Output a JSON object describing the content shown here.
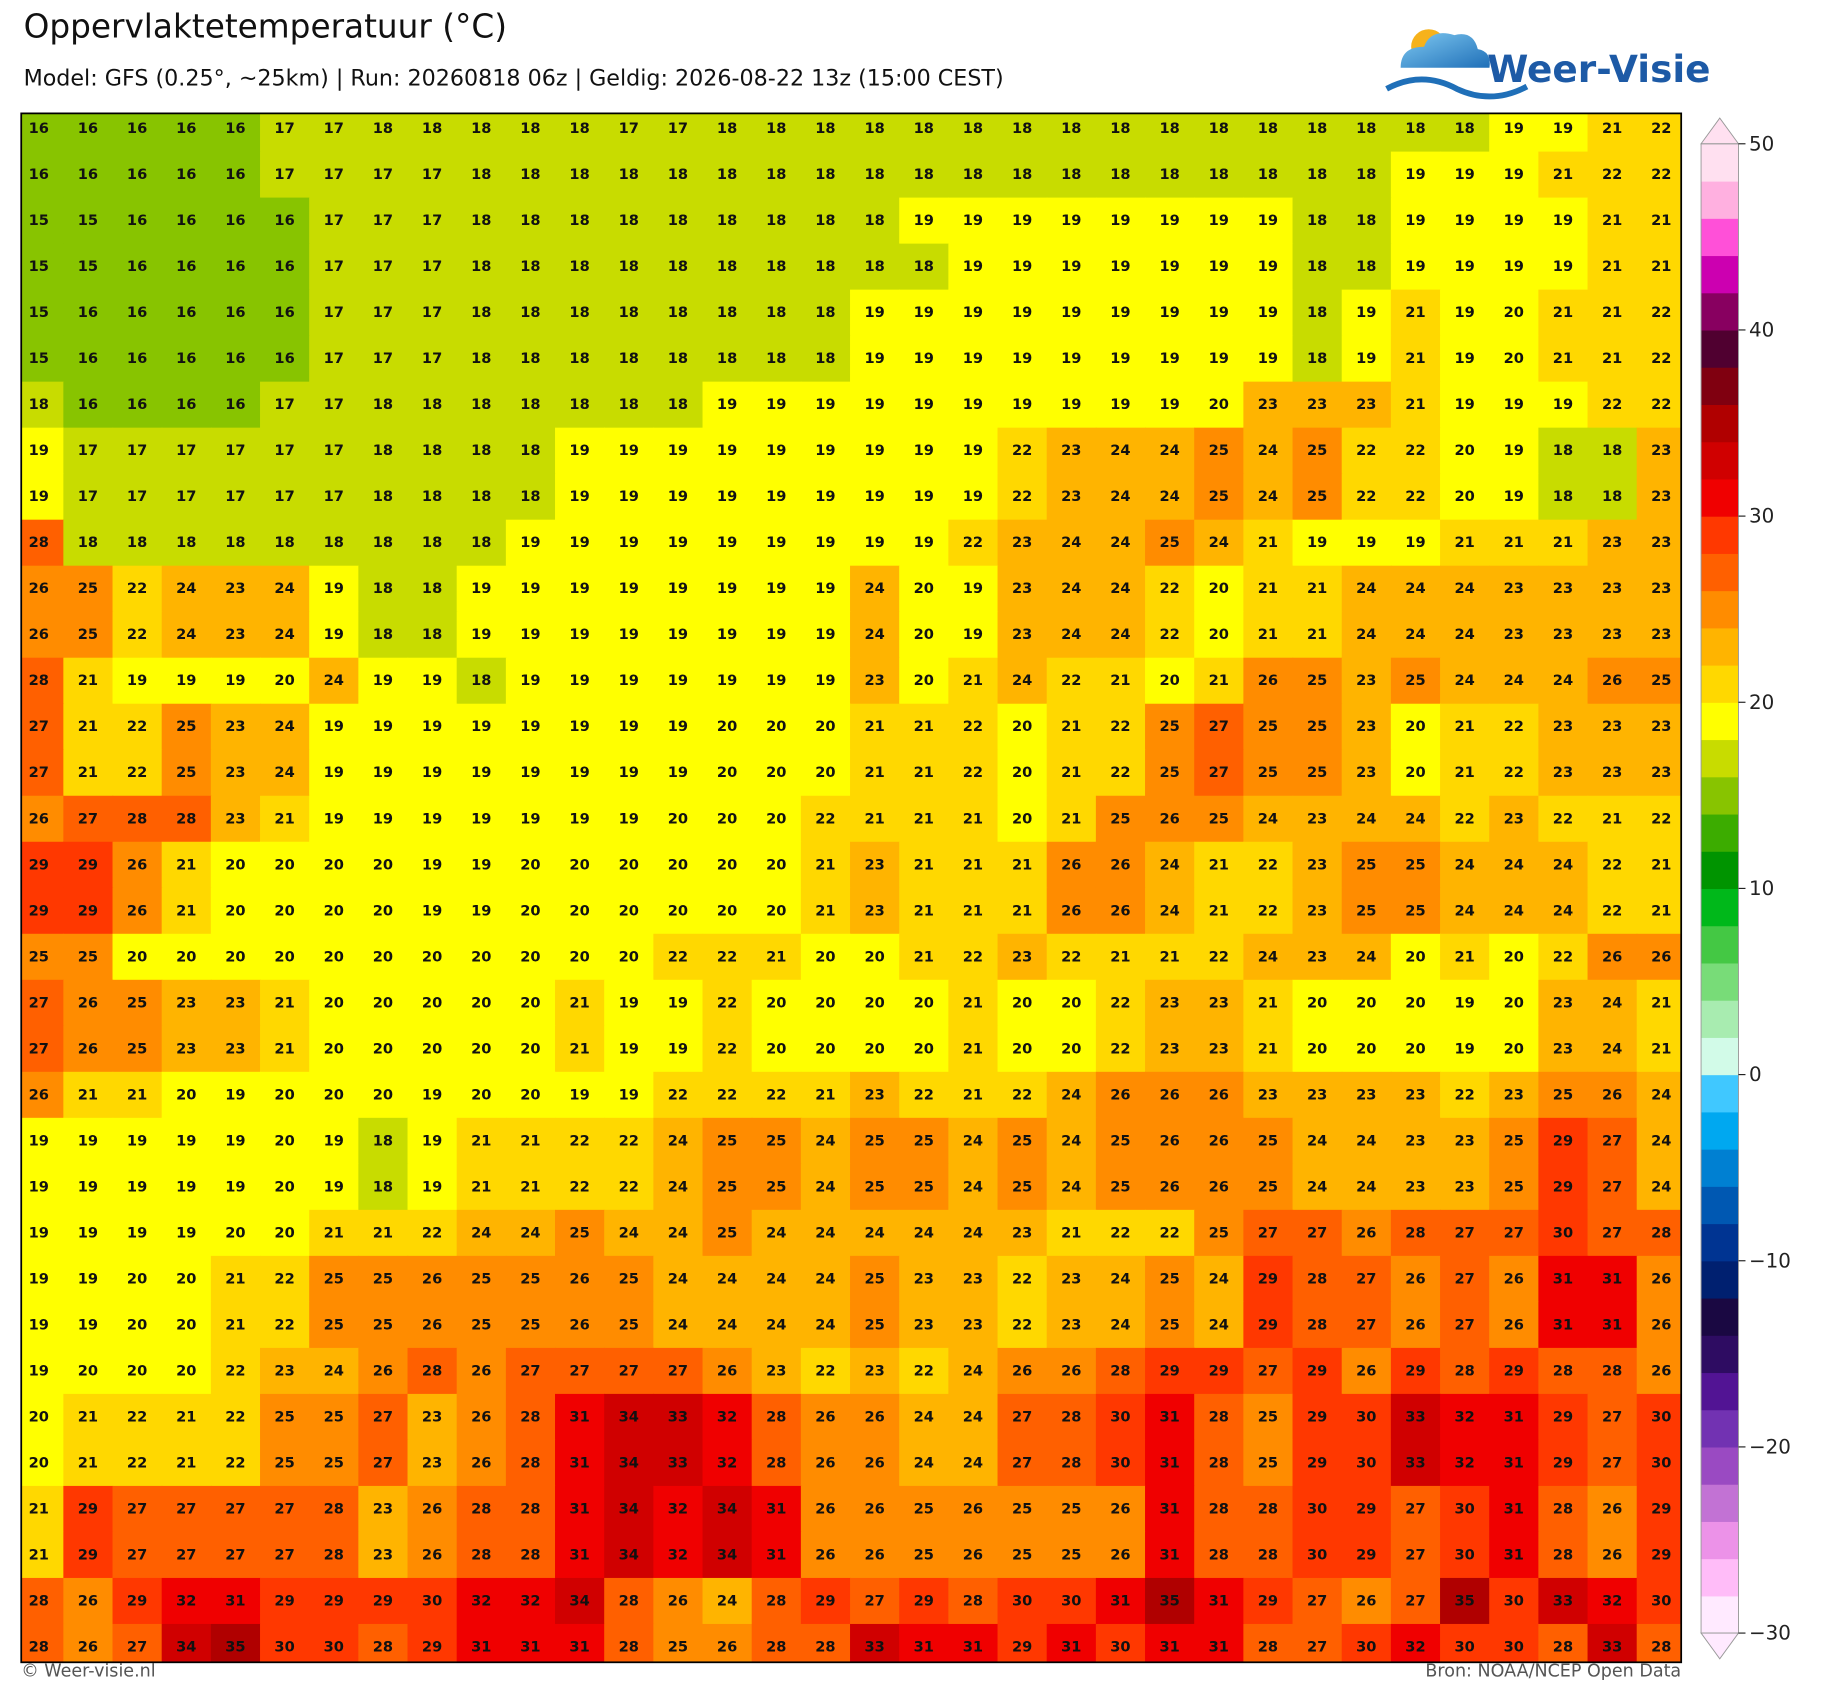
{
  "map": {
    "title": "Oppervlaktetemperatuur (°C)",
    "subtitle": "Model: GFS (0.25°, ~25km)  |  Run: 20260818 06z  |  Geldig: 2026-08-22 13z (15:00 CEST)",
    "logo": "Weer-Visie",
    "footer_left": "© Weer-visie.nl",
    "footer_right": "Bron: NOAA/NCEP Open Data",
    "grid": [
      [
        16,
        16,
        16,
        16,
        16,
        17,
        17,
        18,
        18,
        18,
        18,
        18,
        17,
        17,
        18,
        18,
        18,
        18,
        18,
        18,
        18,
        18,
        18,
        18,
        18,
        18,
        18,
        18,
        18,
        18,
        19,
        19,
        21,
        22
      ],
      [
        16,
        16,
        16,
        16,
        16,
        17,
        17,
        17,
        17,
        18,
        18,
        18,
        18,
        18,
        18,
        18,
        18,
        18,
        18,
        18,
        18,
        18,
        18,
        18,
        18,
        18,
        18,
        18,
        19,
        19,
        19,
        21,
        22,
        22
      ],
      [
        15,
        15,
        16,
        16,
        16,
        16,
        17,
        17,
        17,
        18,
        18,
        18,
        18,
        18,
        18,
        18,
        18,
        18,
        19,
        19,
        19,
        19,
        19,
        19,
        19,
        19,
        18,
        18,
        19,
        19,
        19,
        19,
        21,
        21
      ],
      [
        15,
        15,
        16,
        16,
        16,
        16,
        17,
        17,
        17,
        18,
        18,
        18,
        18,
        18,
        18,
        18,
        18,
        18,
        18,
        19,
        19,
        19,
        19,
        19,
        19,
        19,
        18,
        18,
        19,
        19,
        19,
        19,
        21,
        21
      ],
      [
        15,
        16,
        16,
        16,
        16,
        16,
        17,
        17,
        17,
        18,
        18,
        18,
        18,
        18,
        18,
        18,
        18,
        19,
        19,
        19,
        19,
        19,
        19,
        19,
        19,
        19,
        18,
        19,
        21,
        19,
        20,
        21,
        21,
        22
      ],
      [
        15,
        16,
        16,
        16,
        16,
        16,
        17,
        17,
        17,
        18,
        18,
        18,
        18,
        18,
        18,
        18,
        18,
        19,
        19,
        19,
        19,
        19,
        19,
        19,
        19,
        19,
        18,
        19,
        21,
        19,
        20,
        21,
        21,
        22
      ],
      [
        18,
        16,
        16,
        16,
        16,
        17,
        17,
        18,
        18,
        18,
        18,
        18,
        18,
        18,
        19,
        19,
        19,
        19,
        19,
        19,
        19,
        19,
        19,
        19,
        20,
        23,
        23,
        23,
        21,
        19,
        19,
        19,
        22,
        22
      ],
      [
        19,
        17,
        17,
        17,
        17,
        17,
        17,
        18,
        18,
        18,
        18,
        19,
        19,
        19,
        19,
        19,
        19,
        19,
        19,
        19,
        22,
        23,
        24,
        24,
        25,
        24,
        25,
        22,
        22,
        20,
        19,
        18,
        18,
        23
      ],
      [
        19,
        17,
        17,
        17,
        17,
        17,
        17,
        18,
        18,
        18,
        18,
        19,
        19,
        19,
        19,
        19,
        19,
        19,
        19,
        19,
        22,
        23,
        24,
        24,
        25,
        24,
        25,
        22,
        22,
        20,
        19,
        18,
        18,
        23
      ],
      [
        28,
        18,
        18,
        18,
        18,
        18,
        18,
        18,
        18,
        18,
        19,
        19,
        19,
        19,
        19,
        19,
        19,
        19,
        19,
        22,
        23,
        24,
        24,
        25,
        24,
        21,
        19,
        19,
        19,
        21,
        21,
        21,
        23,
        23
      ],
      [
        26,
        25,
        22,
        24,
        23,
        24,
        19,
        18,
        18,
        19,
        19,
        19,
        19,
        19,
        19,
        19,
        19,
        24,
        20,
        19,
        23,
        24,
        24,
        22,
        20,
        21,
        21,
        24,
        24,
        24,
        23,
        23,
        23,
        23
      ],
      [
        26,
        25,
        22,
        24,
        23,
        24,
        19,
        18,
        18,
        19,
        19,
        19,
        19,
        19,
        19,
        19,
        19,
        24,
        20,
        19,
        23,
        24,
        24,
        22,
        20,
        21,
        21,
        24,
        24,
        24,
        23,
        23,
        23,
        23
      ],
      [
        28,
        21,
        19,
        19,
        19,
        20,
        24,
        19,
        19,
        18,
        19,
        19,
        19,
        19,
        19,
        19,
        19,
        23,
        20,
        21,
        24,
        22,
        21,
        20,
        21,
        26,
        25,
        23,
        25,
        24,
        24,
        24,
        26,
        25
      ],
      [
        27,
        21,
        22,
        25,
        23,
        24,
        19,
        19,
        19,
        19,
        19,
        19,
        19,
        19,
        20,
        20,
        20,
        21,
        21,
        22,
        20,
        21,
        22,
        25,
        27,
        25,
        25,
        23,
        20,
        21,
        22,
        23,
        23,
        23
      ],
      [
        27,
        21,
        22,
        25,
        23,
        24,
        19,
        19,
        19,
        19,
        19,
        19,
        19,
        19,
        20,
        20,
        20,
        21,
        21,
        22,
        20,
        21,
        22,
        25,
        27,
        25,
        25,
        23,
        20,
        21,
        22,
        23,
        23,
        23
      ],
      [
        26,
        27,
        28,
        28,
        23,
        21,
        19,
        19,
        19,
        19,
        19,
        19,
        19,
        20,
        20,
        20,
        22,
        21,
        21,
        21,
        20,
        21,
        25,
        26,
        25,
        24,
        23,
        24,
        24,
        22,
        23,
        22,
        21,
        22
      ],
      [
        29,
        29,
        26,
        21,
        20,
        20,
        20,
        20,
        19,
        19,
        20,
        20,
        20,
        20,
        20,
        20,
        21,
        23,
        21,
        21,
        21,
        26,
        26,
        24,
        21,
        22,
        23,
        25,
        25,
        24,
        24,
        24,
        22,
        21
      ],
      [
        29,
        29,
        26,
        21,
        20,
        20,
        20,
        20,
        19,
        19,
        20,
        20,
        20,
        20,
        20,
        20,
        21,
        23,
        21,
        21,
        21,
        26,
        26,
        24,
        21,
        22,
        23,
        25,
        25,
        24,
        24,
        24,
        22,
        21
      ],
      [
        25,
        25,
        20,
        20,
        20,
        20,
        20,
        20,
        20,
        20,
        20,
        20,
        20,
        22,
        22,
        21,
        20,
        20,
        21,
        22,
        23,
        22,
        21,
        21,
        22,
        24,
        23,
        24,
        20,
        21,
        20,
        22,
        26,
        26
      ],
      [
        27,
        26,
        25,
        23,
        23,
        21,
        20,
        20,
        20,
        20,
        20,
        21,
        19,
        19,
        22,
        20,
        20,
        20,
        20,
        21,
        20,
        20,
        22,
        23,
        23,
        21,
        20,
        20,
        20,
        19,
        20,
        23,
        24,
        21
      ],
      [
        27,
        26,
        25,
        23,
        23,
        21,
        20,
        20,
        20,
        20,
        20,
        21,
        19,
        19,
        22,
        20,
        20,
        20,
        20,
        21,
        20,
        20,
        22,
        23,
        23,
        21,
        20,
        20,
        20,
        19,
        20,
        23,
        24,
        21
      ],
      [
        26,
        21,
        21,
        20,
        19,
        20,
        20,
        20,
        19,
        20,
        20,
        19,
        19,
        22,
        22,
        22,
        21,
        23,
        22,
        21,
        22,
        24,
        26,
        26,
        26,
        23,
        23,
        23,
        23,
        22,
        23,
        25,
        26,
        24
      ],
      [
        19,
        19,
        19,
        19,
        19,
        20,
        19,
        18,
        19,
        21,
        21,
        22,
        22,
        24,
        25,
        25,
        24,
        25,
        25,
        24,
        25,
        24,
        25,
        26,
        26,
        25,
        24,
        24,
        23,
        23,
        25,
        29,
        27,
        24
      ],
      [
        19,
        19,
        19,
        19,
        19,
        20,
        19,
        18,
        19,
        21,
        21,
        22,
        22,
        24,
        25,
        25,
        24,
        25,
        25,
        24,
        25,
        24,
        25,
        26,
        26,
        25,
        24,
        24,
        23,
        23,
        25,
        29,
        27,
        24
      ],
      [
        19,
        19,
        19,
        19,
        20,
        20,
        21,
        21,
        22,
        24,
        24,
        25,
        24,
        24,
        25,
        24,
        24,
        24,
        24,
        24,
        23,
        21,
        22,
        22,
        25,
        27,
        27,
        26,
        28,
        27,
        27,
        30,
        27,
        28
      ],
      [
        19,
        19,
        20,
        20,
        21,
        22,
        25,
        25,
        26,
        25,
        25,
        26,
        25,
        24,
        24,
        24,
        24,
        25,
        23,
        23,
        22,
        23,
        24,
        25,
        24,
        29,
        28,
        27,
        26,
        27,
        26,
        31,
        31,
        26
      ],
      [
        19,
        19,
        20,
        20,
        21,
        22,
        25,
        25,
        26,
        25,
        25,
        26,
        25,
        24,
        24,
        24,
        24,
        25,
        23,
        23,
        22,
        23,
        24,
        25,
        24,
        29,
        28,
        27,
        26,
        27,
        26,
        31,
        31,
        26
      ],
      [
        19,
        20,
        20,
        20,
        22,
        23,
        24,
        26,
        28,
        26,
        27,
        27,
        27,
        27,
        26,
        23,
        22,
        23,
        22,
        24,
        26,
        26,
        28,
        29,
        29,
        27,
        29,
        26,
        29,
        28,
        29,
        28,
        28,
        26
      ],
      [
        20,
        21,
        22,
        21,
        22,
        25,
        25,
        27,
        23,
        26,
        28,
        31,
        34,
        33,
        32,
        28,
        26,
        26,
        24,
        24,
        27,
        28,
        30,
        31,
        28,
        25,
        29,
        30,
        33,
        32,
        31,
        29,
        27,
        30
      ],
      [
        20,
        21,
        22,
        21,
        22,
        25,
        25,
        27,
        23,
        26,
        28,
        31,
        34,
        33,
        32,
        28,
        26,
        26,
        24,
        24,
        27,
        28,
        30,
        31,
        28,
        25,
        29,
        30,
        33,
        32,
        31,
        29,
        27,
        30
      ],
      [
        21,
        29,
        27,
        27,
        27,
        27,
        28,
        23,
        26,
        28,
        28,
        31,
        34,
        32,
        34,
        31,
        26,
        26,
        25,
        26,
        25,
        25,
        26,
        31,
        28,
        28,
        30,
        29,
        27,
        30,
        31,
        28,
        26,
        29
      ],
      [
        21,
        29,
        27,
        27,
        27,
        27,
        28,
        23,
        26,
        28,
        28,
        31,
        34,
        32,
        34,
        31,
        26,
        26,
        25,
        26,
        25,
        25,
        26,
        31,
        28,
        28,
        30,
        29,
        27,
        30,
        31,
        28,
        26,
        29
      ],
      [
        28,
        26,
        29,
        32,
        31,
        29,
        29,
        29,
        30,
        32,
        32,
        34,
        28,
        26,
        24,
        28,
        29,
        27,
        29,
        28,
        30,
        30,
        31,
        35,
        31,
        29,
        27,
        26,
        27,
        35,
        30,
        33,
        32,
        30
      ],
      [
        28,
        26,
        27,
        34,
        35,
        30,
        30,
        28,
        29,
        31,
        31,
        31,
        28,
        25,
        26,
        28,
        28,
        33,
        31,
        31,
        29,
        31,
        30,
        31,
        31,
        28,
        27,
        30,
        32,
        30,
        30,
        28,
        33,
        28
      ]
    ],
    "colorbar": {
      "lim": [
        -30,
        50
      ],
      "ticks": [
        50,
        40,
        30,
        20,
        10,
        0,
        {
          "value": -10,
          "label": "−10"
        },
        {
          "value": -20,
          "label": "−20"
        },
        {
          "value": -30,
          "label": "−30"
        }
      ],
      "colors": [
        "#ffeaff",
        "#ffbcf8",
        "#ec92e8",
        "#c272d4",
        "#9a4ac2",
        "#7232b2",
        "#521494",
        "#2e0c62",
        "#1a0842",
        "#002070",
        "#003492",
        "#0058b2",
        "#0080d2",
        "#00a8f0",
        "#40c8ff",
        "#d2fbe8",
        "#a8ecb0",
        "#78dc78",
        "#44c844",
        "#00b81a",
        "#009400",
        "#3cac00",
        "#88c400",
        "#c8dc00",
        "#ffff00",
        "#ffd800",
        "#ffb400",
        "#ff8c00",
        "#ff6000",
        "#ff3800",
        "#f00000",
        "#d00000",
        "#b00000",
        "#800010",
        "#500030",
        "#880060",
        "#cc00b0",
        "#ff50d8",
        "#ffb0e0",
        "#ffe0f0"
      ]
    }
  }
}
